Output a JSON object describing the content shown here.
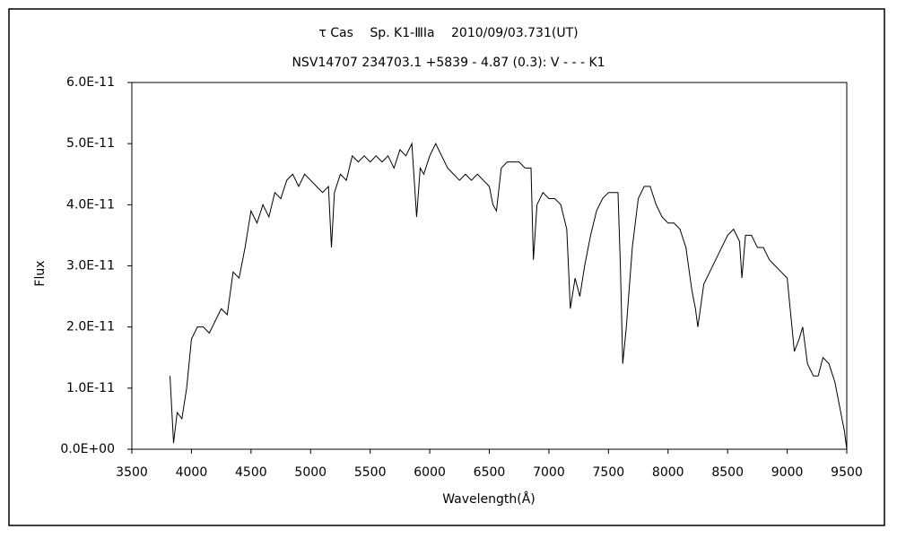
{
  "chart_data": {
    "type": "line",
    "title": "τ Cas　 Sp. K1-ⅢIa　 2010/09/03.731(UT)",
    "subtitle": "NSV14707 234703.1 +5839 - 4.87 (0.3): V - - - K1",
    "xlabel": "Wavelength(Å)",
    "ylabel": "Flux",
    "color": "#000000",
    "x": [
      3820,
      3850,
      3880,
      3920,
      3960,
      4000,
      4050,
      4100,
      4150,
      4200,
      4250,
      4300,
      4350,
      4400,
      4450,
      4500,
      4550,
      4600,
      4650,
      4700,
      4750,
      4800,
      4850,
      4900,
      4950,
      5000,
      5050,
      5100,
      5150,
      5175,
      5200,
      5250,
      5300,
      5350,
      5400,
      5450,
      5500,
      5550,
      5600,
      5650,
      5700,
      5750,
      5800,
      5850,
      5890,
      5920,
      5950,
      6000,
      6050,
      6100,
      6150,
      6200,
      6250,
      6300,
      6350,
      6400,
      6450,
      6500,
      6530,
      6560,
      6600,
      6650,
      6700,
      6750,
      6800,
      6850,
      6870,
      6900,
      6950,
      7000,
      7050,
      7100,
      7150,
      7180,
      7220,
      7260,
      7300,
      7350,
      7400,
      7450,
      7500,
      7550,
      7580,
      7600,
      7620,
      7650,
      7700,
      7750,
      7800,
      7850,
      7900,
      7950,
      8000,
      8050,
      8100,
      8150,
      8200,
      8230,
      8250,
      8300,
      8350,
      8400,
      8450,
      8500,
      8550,
      8600,
      8620,
      8650,
      8700,
      8750,
      8800,
      8850,
      8900,
      8950,
      9000,
      9030,
      9060,
      9100,
      9130,
      9170,
      9220,
      9260,
      9300,
      9350,
      9400,
      9450,
      9480,
      9500
    ],
    "values": [
      1.2e-11,
      1e-12,
      6e-12,
      5e-12,
      1e-11,
      1.8e-11,
      2e-11,
      2e-11,
      1.9e-11,
      2.1e-11,
      2.3e-11,
      2.2e-11,
      2.9e-11,
      2.8e-11,
      3.3e-11,
      3.9e-11,
      3.7e-11,
      4e-11,
      3.8e-11,
      4.2e-11,
      4.1e-11,
      4.4e-11,
      4.5e-11,
      4.3e-11,
      4.5e-11,
      4.4e-11,
      4.3e-11,
      4.2e-11,
      4.3e-11,
      3.3e-11,
      4.2e-11,
      4.5e-11,
      4.4e-11,
      4.8e-11,
      4.7e-11,
      4.8e-11,
      4.7e-11,
      4.8e-11,
      4.7e-11,
      4.8e-11,
      4.6e-11,
      4.9e-11,
      4.8e-11,
      5e-11,
      3.8e-11,
      4.6e-11,
      4.5e-11,
      4.8e-11,
      5e-11,
      4.8e-11,
      4.6e-11,
      4.5e-11,
      4.4e-11,
      4.5e-11,
      4.4e-11,
      4.5e-11,
      4.4e-11,
      4.3e-11,
      4e-11,
      3.9e-11,
      4.6e-11,
      4.7e-11,
      4.7e-11,
      4.7e-11,
      4.6e-11,
      4.6e-11,
      3.1e-11,
      4e-11,
      4.2e-11,
      4.1e-11,
      4.1e-11,
      4e-11,
      3.6e-11,
      2.3e-11,
      2.8e-11,
      2.5e-11,
      3e-11,
      3.5e-11,
      3.9e-11,
      4.1e-11,
      4.2e-11,
      4.2e-11,
      4.2e-11,
      3e-11,
      1.4e-11,
      2e-11,
      3.3e-11,
      4.1e-11,
      4.3e-11,
      4.3e-11,
      4e-11,
      3.8e-11,
      3.7e-11,
      3.7e-11,
      3.6e-11,
      3.3e-11,
      2.6e-11,
      2.3e-11,
      2e-11,
      2.7e-11,
      2.9e-11,
      3.1e-11,
      3.3e-11,
      3.5e-11,
      3.6e-11,
      3.4e-11,
      2.8e-11,
      3.5e-11,
      3.5e-11,
      3.3e-11,
      3.3e-11,
      3.1e-11,
      3e-11,
      2.9e-11,
      2.8e-11,
      2.2e-11,
      1.6e-11,
      1.8e-11,
      2e-11,
      1.4e-11,
      1.2e-11,
      1.2e-11,
      1.5e-11,
      1.4e-11,
      1.1e-11,
      6e-12,
      3e-12,
      0
    ],
    "xlim": [
      3500,
      9500
    ],
    "xticks": [
      3500,
      4000,
      4500,
      5000,
      5500,
      6000,
      6500,
      7000,
      7500,
      8000,
      8500,
      9000,
      9500
    ],
    "ylim": [
      0,
      6e-11
    ],
    "yticks": [
      {
        "value": 0,
        "label": "0.0E+00"
      },
      {
        "value": 1e-11,
        "label": "1.0E-11"
      },
      {
        "value": 2e-11,
        "label": "2.0E-11"
      },
      {
        "value": 3e-11,
        "label": "3.0E-11"
      },
      {
        "value": 4e-11,
        "label": "4.0E-11"
      },
      {
        "value": 5e-11,
        "label": "5.0E-11"
      },
      {
        "value": 6e-11,
        "label": "6.0E-11"
      }
    ]
  }
}
